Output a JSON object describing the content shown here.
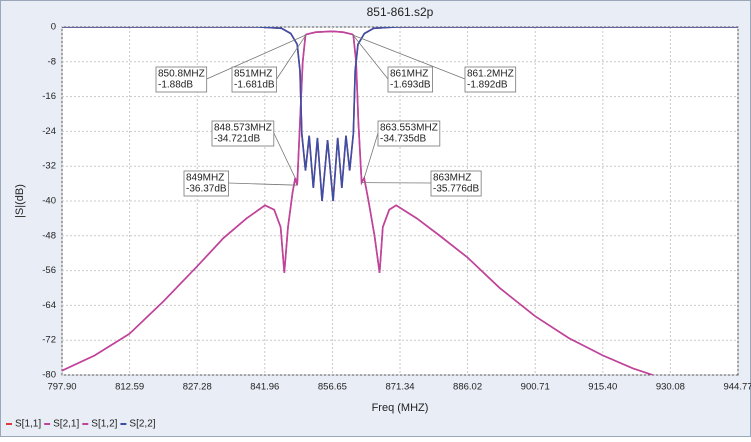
{
  "chart_data": {
    "type": "line",
    "title": "851-861.s2p",
    "x_label": "Freq (MHZ)",
    "y_label": "|S|(dB)",
    "xlim": [
      797.9,
      944.77
    ],
    "xticks": [
      {
        "value": 797.9,
        "label": "797.90"
      },
      812.59,
      827.28,
      841.96,
      856.65,
      871.34,
      886.02,
      900.71,
      {
        "value": 915.4,
        "label": "915.40"
      },
      930.08,
      944.77
    ],
    "ylim": [
      -80,
      0
    ],
    "yticks": [
      0,
      -8,
      -16,
      -24,
      -32,
      -40,
      -48,
      -56,
      -64,
      -72,
      -80
    ],
    "grid": true,
    "series": [
      {
        "name": "S[1,1]",
        "color": "#e03a3a",
        "x": [
          797.9,
          840.6,
          845.6,
          847.6,
          849.0,
          849.6,
          850.0,
          850.8,
          851.6,
          852.5,
          853.4,
          854.4,
          855.6,
          856.8,
          857.8,
          858.7,
          859.6,
          860.4,
          861.2,
          861.6,
          862.2,
          863.6,
          865.6,
          870.6,
          944.77
        ],
        "values": [
          0,
          0,
          -0.3,
          -1.5,
          -4,
          -10,
          -24.5,
          -33,
          -25,
          -37,
          -25.5,
          -40,
          -26,
          -40,
          -25.5,
          -37,
          -25,
          -33,
          -24.5,
          -10,
          -4,
          -1.5,
          -0.3,
          0,
          0
        ]
      },
      {
        "name": "S[2,1]",
        "color": "#c0449a",
        "x": [
          797.9,
          805,
          812.59,
          820,
          827.28,
          833,
          838,
          842,
          844,
          845.4,
          846.2,
          847,
          848,
          848.573,
          849,
          849.6,
          850.2,
          850.8,
          851,
          853,
          856.65,
          859,
          861,
          861.2,
          861.8,
          862.3,
          863,
          863.553,
          864.5,
          865.8,
          866.9,
          867.6,
          869,
          870.5,
          875,
          880,
          886.02,
          893,
          900.71,
          908,
          915.4,
          922,
          929,
          944.77
        ],
        "values": [
          -79,
          -75.5,
          -70.5,
          -63,
          -55,
          -48.5,
          -44,
          -41,
          -42,
          -46,
          -56.5,
          -46,
          -38,
          -34.721,
          -36.37,
          -22,
          -8,
          -1.88,
          -1.681,
          -1.2,
          -1.0,
          -1.2,
          -1.693,
          -1.892,
          -8,
          -22,
          -35.776,
          -34.735,
          -40,
          -48,
          -56.5,
          -46,
          -42,
          -41,
          -44,
          -48,
          -53,
          -60,
          -66.5,
          -71.5,
          -75.5,
          -78.5,
          -81,
          -88
        ]
      },
      {
        "name": "S[1,2]",
        "color": "#c0449a",
        "x": [
          797.9,
          805,
          812.59,
          820,
          827.28,
          833,
          838,
          842,
          844,
          845.4,
          846.2,
          847,
          848,
          848.573,
          849,
          849.6,
          850.2,
          850.8,
          851,
          853,
          856.65,
          859,
          861,
          861.2,
          861.8,
          862.3,
          863,
          863.553,
          864.5,
          865.8,
          866.9,
          867.6,
          869,
          870.5,
          875,
          880,
          886.02,
          893,
          900.71,
          908,
          915.4,
          922,
          929,
          944.77
        ],
        "values": [
          -79,
          -75.5,
          -70.5,
          -63,
          -55,
          -48.5,
          -44,
          -41,
          -42,
          -46,
          -56.5,
          -46,
          -38,
          -34.721,
          -36.37,
          -22,
          -8,
          -1.88,
          -1.681,
          -1.2,
          -1.0,
          -1.2,
          -1.693,
          -1.892,
          -8,
          -22,
          -35.776,
          -34.735,
          -40,
          -48,
          -56.5,
          -46,
          -42,
          -41,
          -44,
          -48,
          -53,
          -60,
          -66.5,
          -71.5,
          -75.5,
          -78.5,
          -81,
          -88
        ]
      },
      {
        "name": "S[2,2]",
        "color": "#3a4fa8",
        "x": [
          797.9,
          840.6,
          845.6,
          847.6,
          849.0,
          849.6,
          850.0,
          850.8,
          851.6,
          852.5,
          853.4,
          854.4,
          855.6,
          856.8,
          857.8,
          858.7,
          859.6,
          860.4,
          861.2,
          861.6,
          862.2,
          863.6,
          865.6,
          870.6,
          944.77
        ],
        "values": [
          0,
          0,
          -0.3,
          -1.5,
          -4,
          -10,
          -24.5,
          -33,
          -25,
          -37,
          -25.5,
          -40,
          -26,
          -40,
          -25.5,
          -37,
          -25,
          -33,
          -24.5,
          -10,
          -4,
          -1.5,
          -0.3,
          0,
          0
        ]
      }
    ],
    "annotations": [
      {
        "x": 850.8,
        "y": -1.88,
        "label": [
          "850.8MHZ",
          "-1.88dB"
        ]
      },
      {
        "x": 851,
        "y": -1.681,
        "label": [
          "851MHZ",
          "-1.681dB"
        ]
      },
      {
        "x": 861,
        "y": -1.693,
        "label": [
          "861MHZ",
          "-1.693dB"
        ]
      },
      {
        "x": 861.2,
        "y": -1.892,
        "label": [
          "861.2MHZ",
          "-1.892dB"
        ]
      },
      {
        "x": 848.573,
        "y": -34.721,
        "label": [
          "848.573MHZ",
          "-34.721dB"
        ]
      },
      {
        "x": 863.553,
        "y": -34.735,
        "label": [
          "863.553MHZ",
          "-34.735dB"
        ]
      },
      {
        "x": 849,
        "y": -36.37,
        "label": [
          "849MHZ",
          "-36.37dB"
        ]
      },
      {
        "x": 863,
        "y": -35.776,
        "label": [
          "863MHZ",
          "-35.776dB"
        ]
      }
    ]
  }
}
